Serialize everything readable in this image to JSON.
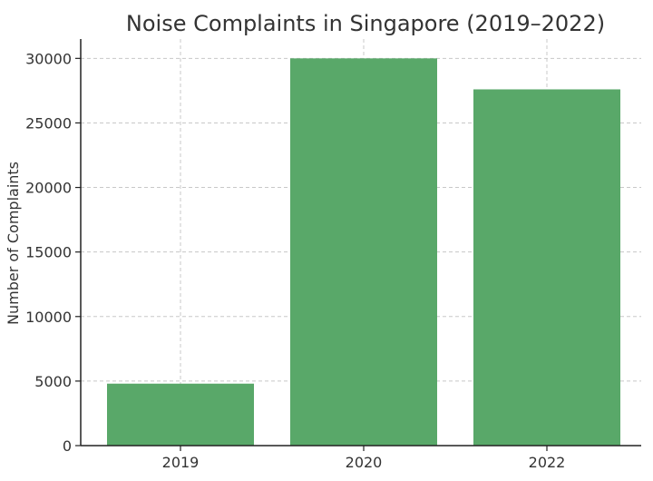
{
  "chart_data": {
    "type": "bar",
    "title": "Noise Complaints in Singapore (2019–2022)",
    "xlabel": "",
    "ylabel": "Number of Complaints",
    "categories": [
      "2019",
      "2020",
      "2022"
    ],
    "values": [
      4800,
      30000,
      27600
    ],
    "ylim": [
      0,
      31500
    ],
    "yticks": [
      0,
      5000,
      10000,
      15000,
      20000,
      25000,
      30000
    ],
    "grid": true,
    "bar_color": "#59a869"
  }
}
